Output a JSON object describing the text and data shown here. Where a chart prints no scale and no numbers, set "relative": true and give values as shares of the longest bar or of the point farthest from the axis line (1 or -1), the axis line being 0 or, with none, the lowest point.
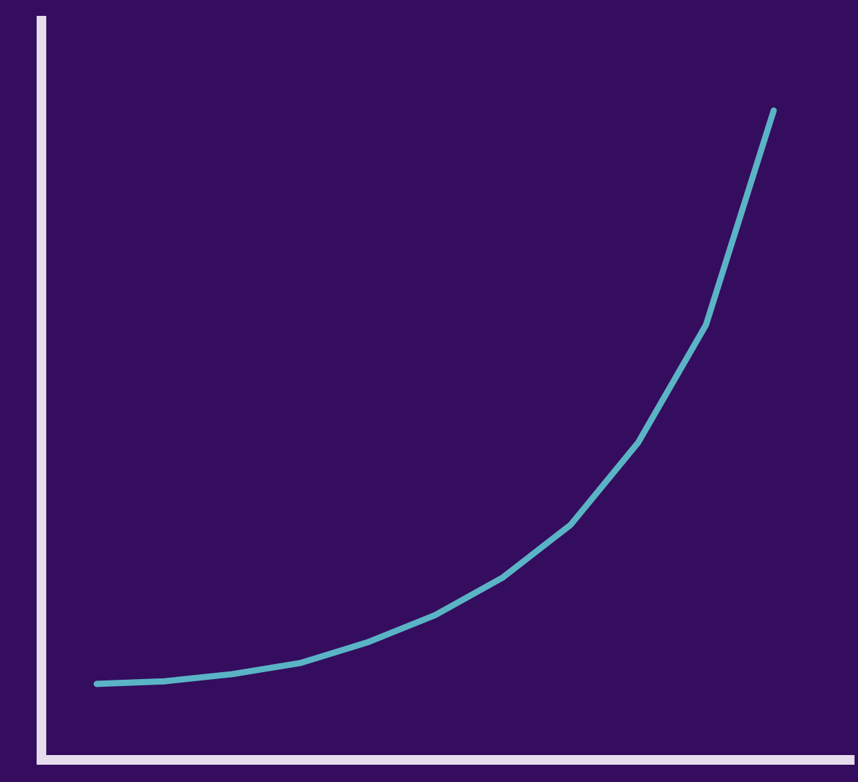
{
  "chart_data": {
    "type": "line",
    "relative": true,
    "categories": [
      null,
      null,
      null,
      null,
      null,
      null,
      null,
      null,
      null,
      null,
      null
    ],
    "series": [
      {
        "color": "#5ab4c6",
        "values": [
          0.117,
          0.121,
          0.132,
          0.149,
          0.181,
          0.223,
          0.281,
          0.362,
          0.489,
          0.67,
          1.0
        ]
      }
    ],
    "grid": false,
    "legend": false,
    "marker": "none",
    "line_style": "solid"
  }
}
